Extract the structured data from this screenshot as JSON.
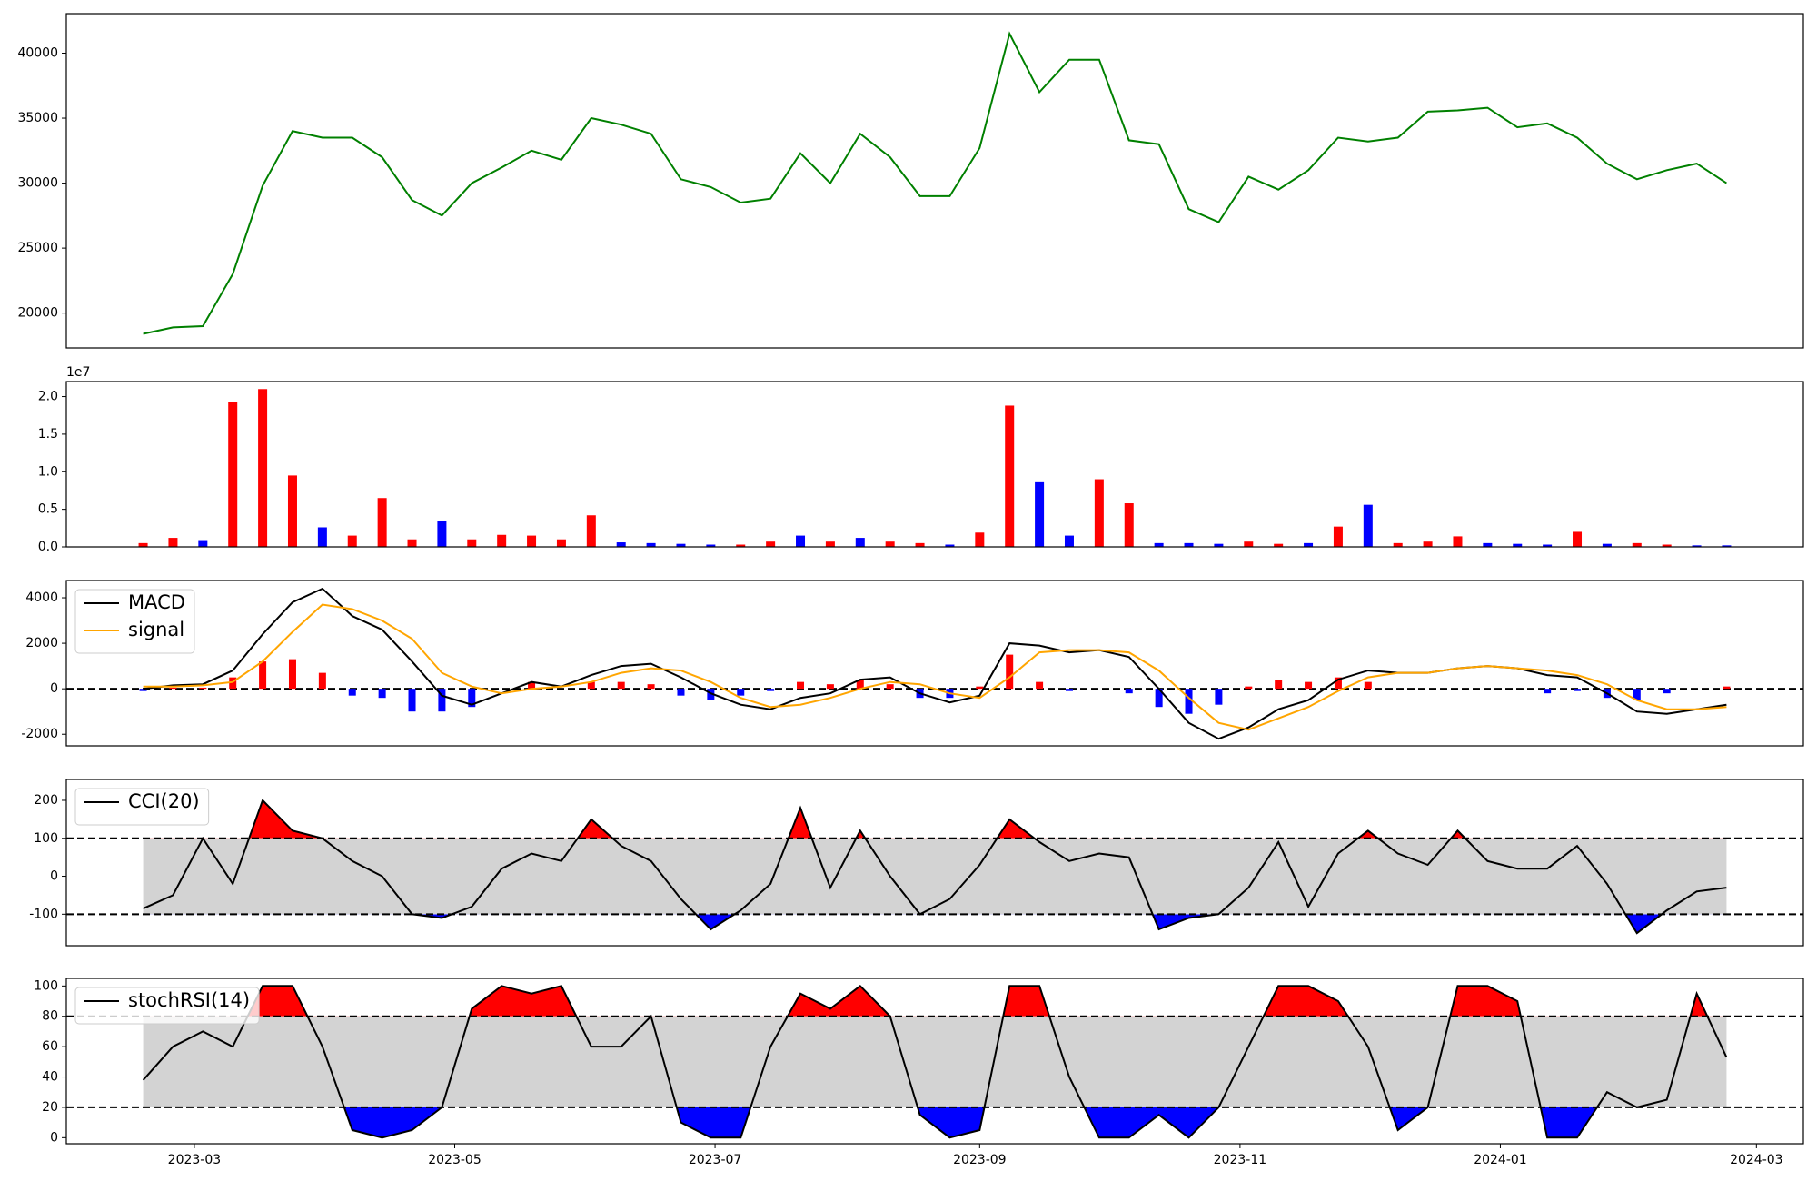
{
  "chart_data": [
    {
      "type": "line",
      "x": [
        "2023-02-17",
        "2023-02-24",
        "2023-03-03",
        "2023-03-10",
        "2023-03-17",
        "2023-03-24",
        "2023-03-31",
        "2023-04-07",
        "2023-04-14",
        "2023-04-21",
        "2023-04-28",
        "2023-05-05",
        "2023-05-12",
        "2023-05-19",
        "2023-05-26",
        "2023-06-02",
        "2023-06-09",
        "2023-06-16",
        "2023-06-23",
        "2023-06-30",
        "2023-07-07",
        "2023-07-14",
        "2023-07-21",
        "2023-07-28",
        "2023-08-04",
        "2023-08-11",
        "2023-08-18",
        "2023-08-25",
        "2023-09-01",
        "2023-09-08",
        "2023-09-15",
        "2023-09-22",
        "2023-09-29",
        "2023-10-06",
        "2023-10-13",
        "2023-10-20",
        "2023-10-27",
        "2023-11-03",
        "2023-11-10",
        "2023-11-17",
        "2023-11-24",
        "2023-12-01",
        "2023-12-08",
        "2023-12-15",
        "2023-12-22",
        "2023-12-29",
        "2024-01-05",
        "2024-01-12",
        "2024-01-19",
        "2024-01-26",
        "2024-02-02",
        "2024-02-09",
        "2024-02-16",
        "2024-02-23"
      ],
      "xlim": [
        "2023-01-30",
        "2024-03-12"
      ],
      "series": [
        {
          "color": "#008000",
          "values": [
            18400,
            18900,
            19000,
            23000,
            29800,
            34000,
            33500,
            33500,
            32000,
            28700,
            27500,
            30000,
            31200,
            32500,
            31800,
            35000,
            34500,
            33800,
            30300,
            29700,
            28500,
            28800,
            32300,
            30000,
            33800,
            32000,
            29000,
            29000,
            32700,
            41500,
            37000,
            39500,
            39500,
            33300,
            33000,
            28000,
            27000,
            30500,
            29500,
            31000,
            33500,
            33200,
            33500,
            35500,
            35600,
            35800,
            34300,
            34600,
            33500,
            31500,
            30300,
            31000,
            31500,
            30000
          ]
        }
      ],
      "ylim": [
        17320,
        43040
      ],
      "yticks": [
        20000,
        25000,
        30000,
        35000,
        40000
      ]
    },
    {
      "type": "bar",
      "offset_label": "1e7",
      "values": [
        500000,
        1200000,
        900000,
        19300000,
        21000000,
        9500000,
        2600000,
        1500000,
        6500000,
        1000000,
        3500000,
        1000000,
        1600000,
        1500000,
        1000000,
        4200000,
        600000,
        500000,
        400000,
        300000,
        300000,
        700000,
        1500000,
        700000,
        1200000,
        700000,
        500000,
        300000,
        1900000,
        18800000,
        8600000,
        1500000,
        9000000,
        5800000,
        500000,
        500000,
        400000,
        700000,
        400000,
        500000,
        2700000,
        5600000,
        500000,
        700000,
        1400000,
        500000,
        400000,
        300000,
        2000000,
        400000,
        500000,
        300000,
        200000,
        200000
      ],
      "colors": [
        "#ff0000",
        "#ff0000",
        "#0000ff",
        "#ff0000",
        "#ff0000",
        "#ff0000",
        "#0000ff",
        "#ff0000",
        "#ff0000",
        "#ff0000",
        "#0000ff",
        "#ff0000",
        "#ff0000",
        "#ff0000",
        "#ff0000",
        "#ff0000",
        "#0000ff",
        "#0000ff",
        "#0000ff",
        "#0000ff",
        "#ff0000",
        "#ff0000",
        "#0000ff",
        "#ff0000",
        "#0000ff",
        "#ff0000",
        "#ff0000",
        "#0000ff",
        "#ff0000",
        "#ff0000",
        "#0000ff",
        "#0000ff",
        "#ff0000",
        "#ff0000",
        "#0000ff",
        "#0000ff",
        "#0000ff",
        "#ff0000",
        "#ff0000",
        "#0000ff",
        "#ff0000",
        "#0000ff",
        "#ff0000",
        "#ff0000",
        "#ff0000",
        "#0000ff",
        "#0000ff",
        "#0000ff",
        "#ff0000",
        "#0000ff",
        "#ff0000",
        "#ff0000",
        "#0000ff",
        "#0000ff"
      ],
      "ylim": [
        0,
        22000000
      ],
      "yticks": [
        {
          "value": 0,
          "label": "0.0"
        },
        {
          "value": 5000000,
          "label": "0.5"
        },
        {
          "value": 10000000,
          "label": "1.0"
        },
        {
          "value": 15000000,
          "label": "1.5"
        },
        {
          "value": 20000000,
          "label": "2.0"
        }
      ]
    },
    {
      "type": "macd",
      "series": [
        {
          "name": "MACD",
          "color": "#000000",
          "values": [
            0,
            150,
            200,
            800,
            2400,
            3800,
            4400,
            3200,
            2600,
            1200,
            -300,
            -700,
            -200,
            300,
            100,
            600,
            1000,
            1100,
            500,
            -200,
            -700,
            -900,
            -400,
            -200,
            400,
            500,
            -200,
            -600,
            -300,
            2000,
            1900,
            1600,
            1700,
            1400,
            0,
            -1500,
            -2200,
            -1700,
            -900,
            -500,
            400,
            800,
            700,
            700,
            900,
            1000,
            900,
            600,
            500,
            -200,
            -1000,
            -1100,
            -900,
            -700
          ]
        },
        {
          "name": "signal",
          "color": "#ffa500",
          "values": [
            100,
            100,
            150,
            300,
            1200,
            2500,
            3700,
            3500,
            3000,
            2200,
            700,
            100,
            -200,
            0,
            100,
            300,
            700,
            900,
            800,
            300,
            -400,
            -800,
            -700,
            -400,
            0,
            300,
            200,
            -200,
            -400,
            500,
            1600,
            1700,
            1700,
            1600,
            800,
            -400,
            -1500,
            -1800,
            -1300,
            -800,
            -100,
            500,
            700,
            700,
            900,
            1000,
            900,
            800,
            600,
            200,
            -500,
            -900,
            -900,
            -800
          ]
        },
        {
          "color_up": "#ff0000",
          "color_down": "#0000ff",
          "values": [
            -100,
            50,
            50,
            500,
            1200,
            1300,
            700,
            -300,
            -400,
            -1000,
            -1000,
            -800,
            0,
            300,
            0,
            300,
            300,
            200,
            -300,
            -500,
            -300,
            -100,
            300,
            200,
            400,
            200,
            -400,
            -400,
            100,
            1500,
            300,
            -100,
            0,
            -200,
            -800,
            -1100,
            -700,
            100,
            400,
            300,
            500,
            300,
            0,
            0,
            0,
            0,
            0,
            -200,
            -100,
            -400,
            -500,
            -200,
            0,
            100
          ]
        }
      ],
      "hlines": [
        0
      ],
      "ylim": [
        -2510,
        4760
      ],
      "yticks": [
        -2000,
        0,
        2000,
        4000
      ]
    },
    {
      "type": "oscillator",
      "series": [
        {
          "name": "CCI(20)",
          "color": "#000000",
          "values": [
            -85,
            -50,
            100,
            -20,
            200,
            120,
            100,
            40,
            0,
            -100,
            -110,
            -80,
            20,
            60,
            40,
            150,
            80,
            40,
            -60,
            -140,
            -90,
            -20,
            180,
            -30,
            120,
            0,
            -100,
            -60,
            30,
            150,
            90,
            40,
            60,
            50,
            -140,
            -110,
            -100,
            -30,
            90,
            -80,
            60,
            120,
            60,
            30,
            120,
            40,
            20,
            20,
            80,
            -20,
            -150,
            -90,
            -40,
            -30
          ]
        }
      ],
      "upper": 100,
      "lower": -100,
      "upper_color": "#ff0000",
      "lower_color": "#0000ff",
      "band_color": "#d3d3d3",
      "ylim": [
        -183,
        255
      ],
      "yticks": [
        -100,
        0,
        100,
        200
      ]
    },
    {
      "type": "oscillator",
      "series": [
        {
          "name": "stochRSI(14)",
          "color": "#000000",
          "values": [
            38,
            60,
            70,
            60,
            100,
            100,
            60,
            5,
            0,
            5,
            20,
            85,
            100,
            95,
            100,
            60,
            60,
            80,
            10,
            0,
            0,
            60,
            95,
            85,
            100,
            80,
            15,
            0,
            5,
            100,
            100,
            40,
            0,
            0,
            15,
            0,
            20,
            60,
            100,
            100,
            90,
            60,
            5,
            20,
            100,
            100,
            90,
            0,
            0,
            30,
            20,
            25,
            95,
            53
          ]
        }
      ],
      "upper": 80,
      "lower": 20,
      "upper_color": "#ff0000",
      "lower_color": "#0000ff",
      "band_color": "#d3d3d3",
      "ylim": [
        -4,
        105
      ],
      "yticks": [
        0,
        20,
        40,
        60,
        80,
        100
      ],
      "xticks": [
        {
          "value": "2023-03-01",
          "label": "2023-03"
        },
        {
          "value": "2023-05-01",
          "label": "2023-05"
        },
        {
          "value": "2023-07-01",
          "label": "2023-07"
        },
        {
          "value": "2023-09-01",
          "label": "2023-09"
        },
        {
          "value": "2023-11-01",
          "label": "2023-11"
        },
        {
          "value": "2024-01-01",
          "label": "2024-01"
        },
        {
          "value": "2024-03-01",
          "label": "2024-03"
        }
      ]
    }
  ]
}
